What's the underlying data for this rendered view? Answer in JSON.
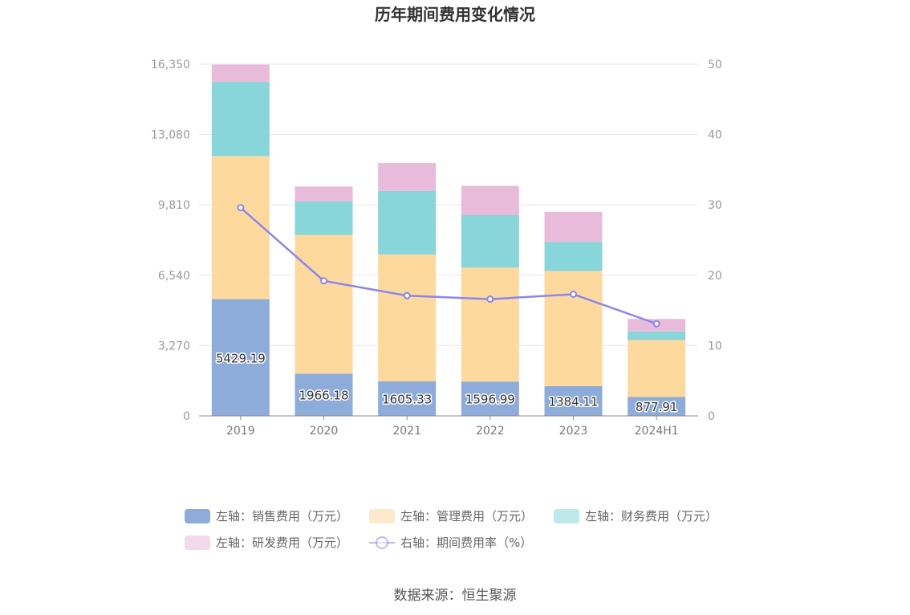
{
  "chart_data": {
    "type": "bar",
    "title": "历年期间费用变化情况",
    "categories": [
      "2019",
      "2020",
      "2021",
      "2022",
      "2023",
      "2024H1"
    ],
    "stacked": true,
    "left_axis": {
      "min": 0,
      "max": 16350,
      "ticks": [
        "0",
        "3,270",
        "6,540",
        "9,810",
        "13,080",
        "16,350"
      ],
      "tick_values": [
        0,
        3270,
        6540,
        9810,
        13080,
        16350
      ]
    },
    "right_axis": {
      "min": 0,
      "max": 50,
      "ticks": [
        "0",
        "10",
        "20",
        "30",
        "40",
        "50"
      ],
      "tick_values": [
        0,
        10,
        20,
        30,
        40,
        50
      ]
    },
    "grid": true,
    "legend_placement": "bottom",
    "series": [
      {
        "name": "左轴：销售费用（万元）",
        "type": "bar",
        "axis": "left",
        "color": "#8eacd9",
        "values": [
          5429.19,
          1966.18,
          1605.33,
          1596.99,
          1384.11,
          877.91
        ],
        "labels": [
          "5429.19",
          "1966.18",
          "1605.33",
          "1596.99",
          "1384.11",
          "877.91"
        ]
      },
      {
        "name": "左轴：管理费用（万元）",
        "type": "bar",
        "axis": "left",
        "color": "#fed99e",
        "values": [
          6650,
          6450,
          5900,
          5300,
          5350,
          2650
        ]
      },
      {
        "name": "左轴：财务费用（万元）",
        "type": "bar",
        "axis": "left",
        "color": "#88d6d9",
        "values": [
          3450,
          1550,
          2950,
          2450,
          1350,
          400
        ]
      },
      {
        "name": "左轴：研发费用（万元）",
        "type": "bar",
        "axis": "left",
        "color": "#e9bbdb",
        "values": [
          800,
          700,
          1300,
          1350,
          1400,
          580
        ]
      },
      {
        "name": "右轴：期间费用率（%）",
        "type": "line",
        "axis": "right",
        "color": "#8a86ed",
        "values": [
          29.6,
          19.2,
          17.1,
          16.6,
          17.3,
          13.1
        ]
      }
    ],
    "source": "数据来源：恒生聚源"
  }
}
